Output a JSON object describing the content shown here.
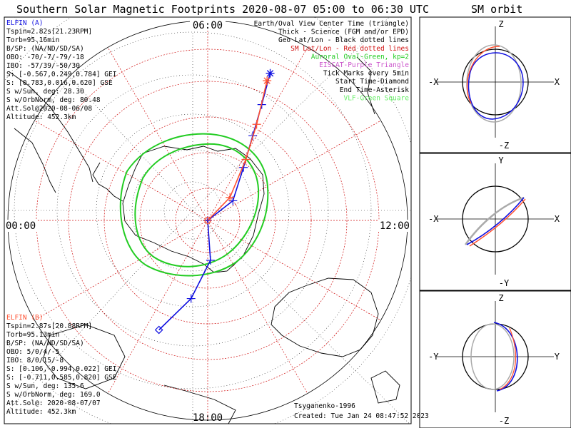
{
  "title": "Southern Solar Magnetic Footprints 2020-08-07 05:00 to 06:30 UTC",
  "sm_orbit_title": "SM orbit",
  "colors": {
    "elfin_a": "#1010e0",
    "elfin_b": "#ff5030",
    "sm_latlon": "#d01010",
    "auroral_oval": "#22cc22",
    "eiscat": "#cc55cc",
    "vlf": "#66ee66",
    "geo_grid": "#111111",
    "orbit_shadow": "#aaaaaa"
  },
  "clock_labels": {
    "top": "06:00",
    "left": "00:00",
    "right": "12:00",
    "bottom": "18:00"
  },
  "legend": [
    {
      "text": "Earth/Oval View Center Time (triangle)",
      "color": "#000000"
    },
    {
      "text": "Thick - Science (FGM and/or EPD)",
      "color": "#000000"
    },
    {
      "text": "Geo Lat/Lon - Black dotted lines",
      "color": "#000000"
    },
    {
      "text": "SM Lat/Lon - Red dotted lines",
      "color": "#d01010"
    },
    {
      "text": "Auroral Oval-Green, kp=2",
      "color": "#22cc22"
    },
    {
      "text": "EISCAT-Purple Triangle",
      "color": "#cc55cc"
    },
    {
      "text": "Tick Marks every 5min",
      "color": "#000000"
    },
    {
      "text": "Start Time-Diamond",
      "color": "#000000"
    },
    {
      "text": "End Time-Asterisk",
      "color": "#000000"
    },
    {
      "text": "VLF-Green Square",
      "color": "#66ee66"
    }
  ],
  "elfin_a": {
    "name": "ELFIN (A)",
    "lines": [
      "Tspin=2.82s[21.23RPM]",
      "Torb=95.16min",
      "B/SP: (NA/ND/SD/SA)",
      "OBO: -70/-7/-79/-18",
      "IBO: -57/39/-50/30",
      "S: [-0.567,0.249,0.784] GEI",
      "S: [0.783,0.016,0.620] GSE",
      "S w/Sun, deg: 28.30",
      "S w/OrbNorm, deg: 80.48",
      "Att.Sol@2020-08-06/08",
      "Altitude: 452.3km"
    ]
  },
  "elfin_b": {
    "name": "ELFIN (B)",
    "lines": [
      "Tspin=2.87s[20.88RPM]",
      "Torb=95.13min",
      "B/SP: (NA/ND/SD/SA)",
      "OBO: 5/0/4/-5",
      "IBO: 8/0/15/-8",
      "S: [0.106,-0.994,0.022] GEI",
      "S: [-0.711,0.585,0.820] GSE",
      "S w/Sun, deg: 135.6",
      "S w/OrbNorm, deg: 169.0",
      "Att.Sol@: 2020-08-07/07",
      "Altitude: 452.3km"
    ]
  },
  "footer": {
    "model": "Tsyganenko-1996",
    "created": "Created: Tue Jan 24 08:47:52 2023"
  },
  "orbit_panels": [
    {
      "top": "Z",
      "bottom": "-Z",
      "left": "-X",
      "right": "X"
    },
    {
      "top": "Y",
      "bottom": "-Y",
      "left": "-X",
      "right": "X"
    },
    {
      "top": "Z",
      "bottom": "-Z",
      "left": "-Y",
      "right": "Y"
    }
  ],
  "chart_data": [
    {
      "type": "line",
      "projection": "south-polar",
      "grid": true,
      "series": [
        {
          "name": "ELFIN (A)",
          "color": "#1010e0",
          "points_lon_lat": [
            [
              -24,
              -60
            ],
            [
              -12,
              -70
            ],
            [
              4,
              -80
            ],
            [
              60,
              -90
            ],
            [
              128,
              -82
            ],
            [
              146,
              -74
            ],
            [
              152,
              -66
            ],
            [
              155,
              -58
            ],
            [
              157,
              -50
            ]
          ]
        },
        {
          "name": "ELFIN (B)",
          "color": "#ff5030",
          "points_lon_lat": [
            [
              108,
              -90
            ],
            [
              136,
              -82
            ],
            [
              148,
              -72
            ],
            [
              153,
              -63
            ],
            [
              157,
              -52
            ]
          ]
        }
      ]
    }
  ]
}
